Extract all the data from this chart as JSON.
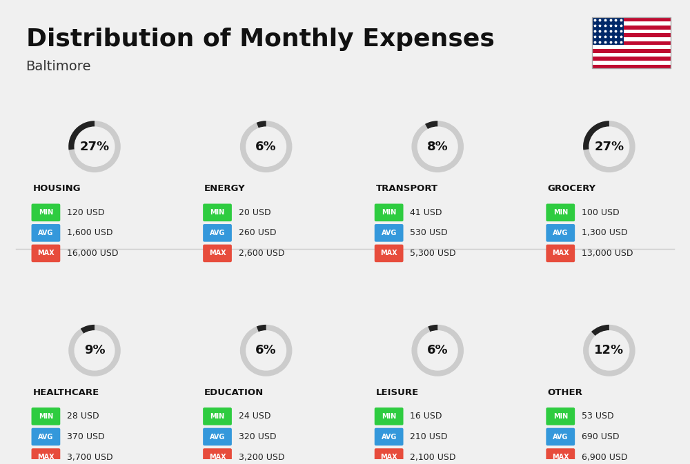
{
  "title": "Distribution of Monthly Expenses",
  "subtitle": "Baltimore",
  "background_color": "#f0f0f0",
  "categories": [
    {
      "name": "HOUSING",
      "pct": 27,
      "min_val": "120 USD",
      "avg_val": "1,600 USD",
      "max_val": "16,000 USD",
      "row": 0,
      "col": 0
    },
    {
      "name": "ENERGY",
      "pct": 6,
      "min_val": "20 USD",
      "avg_val": "260 USD",
      "max_val": "2,600 USD",
      "row": 0,
      "col": 1
    },
    {
      "name": "TRANSPORT",
      "pct": 8,
      "min_val": "41 USD",
      "avg_val": "530 USD",
      "max_val": "5,300 USD",
      "row": 0,
      "col": 2
    },
    {
      "name": "GROCERY",
      "pct": 27,
      "min_val": "100 USD",
      "avg_val": "1,300 USD",
      "max_val": "13,000 USD",
      "row": 0,
      "col": 3
    },
    {
      "name": "HEALTHCARE",
      "pct": 9,
      "min_val": "28 USD",
      "avg_val": "370 USD",
      "max_val": "3,700 USD",
      "row": 1,
      "col": 0
    },
    {
      "name": "EDUCATION",
      "pct": 6,
      "min_val": "24 USD",
      "avg_val": "320 USD",
      "max_val": "3,200 USD",
      "row": 1,
      "col": 1
    },
    {
      "name": "LEISURE",
      "pct": 6,
      "min_val": "16 USD",
      "avg_val": "210 USD",
      "max_val": "2,100 USD",
      "row": 1,
      "col": 2
    },
    {
      "name": "OTHER",
      "pct": 12,
      "min_val": "53 USD",
      "avg_val": "690 USD",
      "max_val": "6,900 USD",
      "row": 1,
      "col": 3
    }
  ],
  "color_min": "#2ecc40",
  "color_avg": "#3498db",
  "color_max": "#e74c3c",
  "arc_color_active": "#222222",
  "arc_color_bg": "#cccccc",
  "label_color_min": "#ffffff",
  "label_color_avg": "#ffffff",
  "label_color_max": "#ffffff"
}
